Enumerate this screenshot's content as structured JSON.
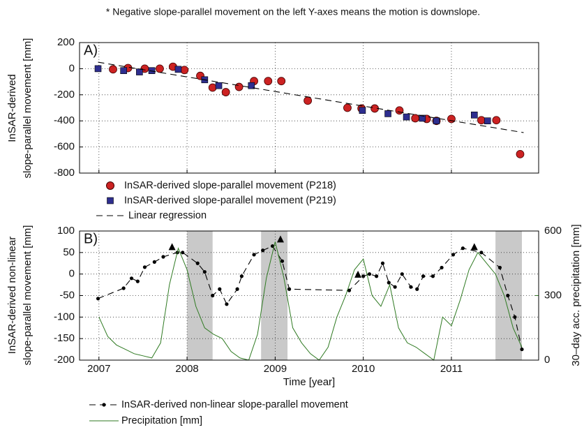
{
  "note": "* Negative slope-parallel movement on the left Y-axes means the motion is downslope.",
  "chart_data": [
    {
      "type": "scatter",
      "panel_label": "A)",
      "ylabel": [
        "InSAR-derived",
        "slope-parallel movement [mm]"
      ],
      "xlim": [
        2006.78,
        2011.99
      ],
      "xticks": [
        2007,
        2008,
        2009,
        2010,
        2011
      ],
      "show_xtick_labels": false,
      "ylim": [
        -800,
        200
      ],
      "yticks": [
        200,
        0,
        -200,
        -400,
        -600,
        -800
      ],
      "grid": true,
      "series": [
        {
          "name": "InSAR-derived slope-parallel movement (P218)",
          "color": "#cc2222",
          "marker": "circle",
          "x": [
            2007.16,
            2007.33,
            2007.52,
            2007.69,
            2007.84,
            2007.97,
            2008.15,
            2008.29,
            2008.44,
            2008.59,
            2008.76,
            2008.92,
            2009.07,
            2009.37,
            2009.82,
            2009.98,
            2010.13,
            2010.41,
            2010.59,
            2010.72,
            2010.83,
            2011.0,
            2011.34,
            2011.51,
            2011.78
          ],
          "values": [
            -5,
            5,
            0,
            0,
            15,
            -10,
            -55,
            -145,
            -180,
            -140,
            -95,
            -95,
            -95,
            -245,
            -300,
            -305,
            -305,
            -320,
            -380,
            -385,
            -400,
            -385,
            -395,
            -395,
            -655
          ]
        },
        {
          "name": "InSAR-derived slope-parallel movement (P219)",
          "color": "#2e2e8f",
          "marker": "square",
          "x": [
            2006.99,
            2007.28,
            2007.46,
            2007.6,
            2007.9,
            2008.2,
            2008.36,
            2008.73,
            2009.99,
            2010.28,
            2010.49,
            2010.67,
            2010.83,
            2011.26,
            2011.41
          ],
          "values": [
            0,
            -15,
            -25,
            -15,
            -5,
            -85,
            -130,
            -130,
            -320,
            -345,
            -370,
            -380,
            -400,
            -355,
            -400
          ]
        },
        {
          "name": "Linear regression",
          "color": "#000000",
          "style": "dashed",
          "x": [
            2006.99,
            2011.82
          ],
          "values": [
            50,
            -490
          ]
        }
      ]
    },
    {
      "type": "line",
      "panel_label": "B)",
      "ylabel": [
        "InSAR-derived non-linear",
        "slope-parallel movement [mm]"
      ],
      "y2label": "30–day acc. precipitation [mm]",
      "y2color": "#2f7a22",
      "xlabel": "Time [year]",
      "xlim": [
        2006.78,
        2011.99
      ],
      "xticks": [
        2007,
        2008,
        2009,
        2010,
        2011
      ],
      "show_xtick_labels": true,
      "ylim": [
        -200,
        100
      ],
      "yticks": [
        100,
        50,
        0,
        -50,
        -100,
        -150,
        -200
      ],
      "y2lim": [
        0,
        600
      ],
      "y2ticks": [
        600,
        300,
        0
      ],
      "grid": true,
      "shaded_periods": [
        [
          2008.0,
          2008.29
        ],
        [
          2008.84,
          2009.14
        ],
        [
          2011.5,
          2011.8
        ]
      ],
      "peaks": {
        "x": [
          2007.83,
          2009.06,
          2009.94,
          2011.26
        ],
        "values": [
          62,
          80,
          -2,
          62
        ]
      },
      "series": [
        {
          "name": "InSAR-derived non-linear slope-parallel movement",
          "color": "#000000",
          "style": "dashed",
          "marker": "dot",
          "x": [
            2006.99,
            2007.28,
            2007.37,
            2007.44,
            2007.52,
            2007.63,
            2007.73,
            2007.89,
            2007.95,
            2008.12,
            2008.2,
            2008.29,
            2008.37,
            2008.45,
            2008.57,
            2008.62,
            2008.76,
            2008.86,
            2008.97,
            2009.08,
            2009.16,
            2009.84,
            2010.0,
            2010.07,
            2010.15,
            2010.22,
            2010.29,
            2010.36,
            2010.44,
            2010.54,
            2010.61,
            2010.68,
            2010.79,
            2010.89,
            2011.02,
            2011.13,
            2011.34,
            2011.55,
            2011.64,
            2011.72,
            2011.8
          ],
          "values": [
            -57,
            -33,
            -10,
            -17,
            16,
            28,
            40,
            50,
            50,
            25,
            5,
            -50,
            -35,
            -70,
            -35,
            -5,
            45,
            55,
            65,
            30,
            -35,
            -38,
            -5,
            0,
            -5,
            25,
            -20,
            -30,
            0,
            -30,
            -35,
            -5,
            -5,
            15,
            45,
            60,
            50,
            15,
            -50,
            -100,
            -175
          ]
        },
        {
          "name": "Precipitation [mm]",
          "color": "#2f7a22",
          "style": "solid",
          "axis": "y2",
          "x": [
            2007.0,
            2007.1,
            2007.2,
            2007.3,
            2007.4,
            2007.5,
            2007.6,
            2007.7,
            2007.8,
            2007.9,
            2008.0,
            2008.1,
            2008.2,
            2008.3,
            2008.4,
            2008.5,
            2008.6,
            2008.7,
            2008.8,
            2008.9,
            2009.0,
            2009.1,
            2009.2,
            2009.3,
            2009.4,
            2009.5,
            2009.6,
            2009.7,
            2009.8,
            2009.9,
            2010.0,
            2010.1,
            2010.2,
            2010.3,
            2010.4,
            2010.5,
            2010.6,
            2010.7,
            2010.8,
            2010.9,
            2011.0,
            2011.1,
            2011.2,
            2011.3,
            2011.4,
            2011.5,
            2011.6,
            2011.7,
            2011.8
          ],
          "values": [
            200,
            110,
            70,
            50,
            30,
            20,
            10,
            80,
            350,
            520,
            420,
            250,
            150,
            120,
            100,
            40,
            10,
            0,
            120,
            380,
            550,
            380,
            150,
            80,
            30,
            0,
            60,
            200,
            300,
            420,
            470,
            300,
            250,
            350,
            150,
            80,
            60,
            30,
            0,
            200,
            160,
            280,
            420,
            500,
            450,
            400,
            300,
            150,
            60
          ]
        }
      ]
    }
  ]
}
